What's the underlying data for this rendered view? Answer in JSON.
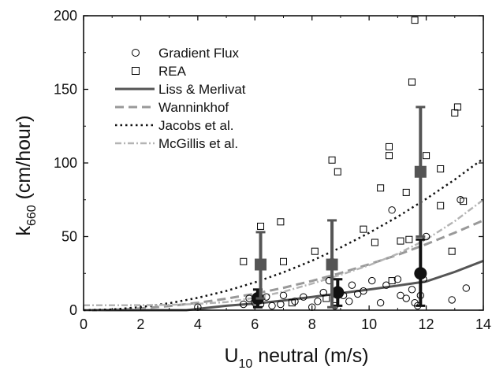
{
  "chart_data": {
    "type": "scatter",
    "xlabel": {
      "main": "U",
      "sub": "10",
      "rest": " neutral (m/s)"
    },
    "ylabel": {
      "main": "k",
      "sub": "660",
      "rest": " (cm/hour)"
    },
    "xlim": [
      0,
      14
    ],
    "ylim": [
      0,
      200
    ],
    "xticks": [
      0,
      2,
      4,
      6,
      8,
      10,
      12,
      14
    ],
    "yticks": [
      0,
      50,
      100,
      150,
      200
    ],
    "grid": false,
    "legend_position": "top-left",
    "series": [
      {
        "name": "Gradient Flux",
        "kind": "points",
        "marker": "circle",
        "color": "#000000",
        "points": [
          [
            4.0,
            2
          ],
          [
            5.6,
            4
          ],
          [
            5.8,
            8
          ],
          [
            6.0,
            5
          ],
          [
            6.2,
            4
          ],
          [
            6.4,
            9
          ],
          [
            6.6,
            3
          ],
          [
            6.9,
            4
          ],
          [
            7.0,
            10
          ],
          [
            7.4,
            6
          ],
          [
            7.7,
            9
          ],
          [
            8.0,
            2
          ],
          [
            8.2,
            6
          ],
          [
            8.4,
            12
          ],
          [
            8.6,
            20
          ],
          [
            8.7,
            33
          ],
          [
            8.8,
            3
          ],
          [
            8.9,
            14
          ],
          [
            9.1,
            10
          ],
          [
            9.3,
            6
          ],
          [
            9.4,
            17
          ],
          [
            9.6,
            11
          ],
          [
            9.8,
            13
          ],
          [
            10.1,
            20
          ],
          [
            10.4,
            5
          ],
          [
            10.6,
            17
          ],
          [
            10.8,
            68
          ],
          [
            11.0,
            21
          ],
          [
            11.1,
            10
          ],
          [
            11.3,
            8
          ],
          [
            11.5,
            14
          ],
          [
            11.6,
            5
          ],
          [
            11.7,
            3
          ],
          [
            11.8,
            10
          ],
          [
            11.9,
            21
          ],
          [
            12.0,
            50
          ],
          [
            12.9,
            7
          ],
          [
            13.2,
            75
          ],
          [
            13.4,
            15
          ]
        ]
      },
      {
        "name": "REA",
        "kind": "points",
        "marker": "square",
        "color": "#000000",
        "points": [
          [
            5.6,
            33
          ],
          [
            6.2,
            57
          ],
          [
            6.9,
            60
          ],
          [
            7.0,
            33
          ],
          [
            7.3,
            5
          ],
          [
            8.1,
            40
          ],
          [
            8.5,
            8
          ],
          [
            8.7,
            102
          ],
          [
            8.9,
            94
          ],
          [
            9.8,
            55
          ],
          [
            10.2,
            46
          ],
          [
            10.4,
            83
          ],
          [
            10.7,
            111
          ],
          [
            10.7,
            105
          ],
          [
            10.8,
            20
          ],
          [
            11.1,
            47
          ],
          [
            11.3,
            80
          ],
          [
            11.4,
            48
          ],
          [
            11.5,
            155
          ],
          [
            11.6,
            197
          ],
          [
            12.0,
            105
          ],
          [
            12.5,
            71
          ],
          [
            12.5,
            96
          ],
          [
            12.9,
            40
          ],
          [
            13.0,
            134
          ],
          [
            13.1,
            138
          ],
          [
            13.3,
            74
          ]
        ]
      },
      {
        "name": "Liss & Merlivat",
        "kind": "line",
        "color": "#555555",
        "dash": "solid",
        "x": [
          0,
          3.6,
          5,
          6,
          7,
          8,
          9,
          10,
          11,
          12,
          13,
          14
        ],
        "y": [
          0,
          0,
          3,
          4.5,
          6.5,
          9,
          11.5,
          14,
          16.7,
          19.5,
          26,
          33.5
        ]
      },
      {
        "name": "Wanninkhof",
        "kind": "line",
        "color": "#999999",
        "dash": "dashed",
        "x": [
          0,
          1,
          2,
          3,
          4,
          5,
          6,
          7,
          8,
          9,
          10,
          11,
          12,
          13,
          14
        ],
        "y": [
          0,
          0.3,
          1.2,
          2.8,
          5,
          7.8,
          11.2,
          15.2,
          19.9,
          25.2,
          31.1,
          37.6,
          44.8,
          52.6,
          61
        ]
      },
      {
        "name": "Jacobs et al.",
        "kind": "line",
        "color": "#111111",
        "dash": "dotted",
        "x": [
          0,
          1,
          2,
          3,
          4,
          5,
          6,
          7,
          8,
          9,
          10,
          11,
          12,
          13,
          14
        ],
        "y": [
          0,
          0.5,
          2.1,
          4.7,
          8.4,
          13.1,
          18.9,
          25.7,
          33.6,
          42.5,
          52.5,
          63.5,
          75.6,
          88.7,
          103
        ]
      },
      {
        "name": "McGillis et al.",
        "kind": "line",
        "color": "#b4b4b4",
        "dash": "dashdot",
        "x": [
          0,
          1,
          2,
          3,
          4,
          5,
          6,
          7,
          8,
          9,
          10,
          11,
          12,
          13,
          14
        ],
        "y": [
          3.3,
          3.3,
          3.4,
          3.6,
          4.3,
          5.5,
          8.4,
          12.5,
          18,
          24,
          30.5,
          38.3,
          48,
          60.5,
          75
        ]
      },
      {
        "name": "Gradient Flux (bin mean)",
        "kind": "binned",
        "marker": "circle",
        "color": "#111111",
        "points": [
          {
            "x": 6.1,
            "y": 8,
            "low": 2,
            "high": 14
          },
          {
            "x": 8.9,
            "y": 12,
            "low": 3,
            "high": 21
          },
          {
            "x": 11.8,
            "y": 25,
            "low": 3,
            "high": 48
          }
        ]
      },
      {
        "name": "REA (bin mean)",
        "kind": "binned",
        "marker": "square",
        "color": "#555555",
        "points": [
          {
            "x": 6.2,
            "y": 31,
            "low": 8,
            "high": 53
          },
          {
            "x": 8.7,
            "y": 31,
            "low": 2,
            "high": 61
          },
          {
            "x": 11.8,
            "y": 94,
            "low": 50,
            "high": 138
          }
        ]
      }
    ]
  }
}
